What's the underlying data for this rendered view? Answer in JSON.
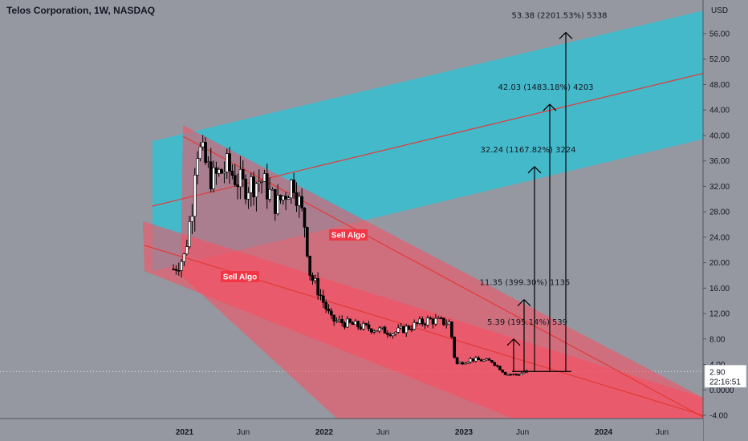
{
  "header": {
    "title": "Telos Corporation, 1W, NASDAQ"
  },
  "chart_data": {
    "type": "candlestick",
    "title": "Telos Corporation, 1W, NASDAQ",
    "currency": "USD",
    "y_ticks": [
      "56.00",
      "52.00",
      "48.00",
      "44.00",
      "40.00",
      "36.00",
      "32.00",
      "28.00",
      "24.00",
      "20.00",
      "16.00",
      "12.00",
      "8.00",
      "4.00",
      "0.0000",
      "-4.00"
    ],
    "y_range": [
      -4.5,
      59
    ],
    "x_labels": [
      {
        "label": "2021",
        "year": true,
        "date": "2021.0"
      },
      {
        "label": "Jun",
        "year": false,
        "date": "2021.42"
      },
      {
        "label": "2022",
        "year": true,
        "date": "2022.0"
      },
      {
        "label": "Jun",
        "year": false,
        "date": "2022.42"
      },
      {
        "label": "2023",
        "year": true,
        "date": "2023.0"
      },
      {
        "label": "Jun",
        "year": false,
        "date": "2023.42"
      },
      {
        "label": "2024",
        "year": true,
        "date": "2024.0"
      },
      {
        "label": "Jun",
        "year": false,
        "date": "2024.42"
      }
    ],
    "last_price": "2.90",
    "countdown": "22:16:51",
    "colors": {
      "background": "#9598a1",
      "cyan_channel": "#26c6da",
      "red_channel": "#ff4d5e",
      "trend_line": "#e53935",
      "label_bg": "#f23645",
      "candle_up": "#ffffff",
      "candle_down": "#000000"
    },
    "sell_labels": [
      "Sell Algo",
      "Sell Algo"
    ],
    "targets": [
      {
        "text": "5.39 (195.14%) 539",
        "price": 8.0
      },
      {
        "text": "11.35 (399.30%) 1135",
        "price": 14.2
      },
      {
        "text": "32.24 (1167.82%) 3224",
        "price": 35.1
      },
      {
        "text": "42.03 (1483.18%) 4203",
        "price": 44.9
      },
      {
        "text": "53.38 (2201.53%) 5338",
        "price": 56.2
      }
    ],
    "weekly_closes": [
      {
        "date": "2020.92",
        "close": 19.0
      },
      {
        "date": "2021.0",
        "close": 21.0
      },
      {
        "date": "2021.06",
        "close": 30.0
      },
      {
        "date": "2021.08",
        "close": 38.5
      },
      {
        "date": "2021.12",
        "close": 37.0
      },
      {
        "date": "2021.2",
        "close": 33.0
      },
      {
        "date": "2021.3",
        "close": 35.0
      },
      {
        "date": "2021.42",
        "close": 32.0
      },
      {
        "date": "2021.55",
        "close": 33.0
      },
      {
        "date": "2021.66",
        "close": 29.0
      },
      {
        "date": "2021.78",
        "close": 33.0
      },
      {
        "date": "2021.86",
        "close": 26.0
      },
      {
        "date": "2021.9",
        "close": 18.0
      },
      {
        "date": "2021.95",
        "close": 16.0
      },
      {
        "date": "2022.05",
        "close": 11.0
      },
      {
        "date": "2022.25",
        "close": 10.0
      },
      {
        "date": "2022.5",
        "close": 9.0
      },
      {
        "date": "2022.75",
        "close": 11.0
      },
      {
        "date": "2022.9",
        "close": 10.5
      },
      {
        "date": "2022.94",
        "close": 4.0
      },
      {
        "date": "2023.05",
        "close": 4.8
      },
      {
        "date": "2023.2",
        "close": 4.5
      },
      {
        "date": "2023.3",
        "close": 2.5
      },
      {
        "date": "2023.38",
        "close": 2.4
      },
      {
        "date": "2023.45",
        "close": 2.9
      }
    ]
  }
}
